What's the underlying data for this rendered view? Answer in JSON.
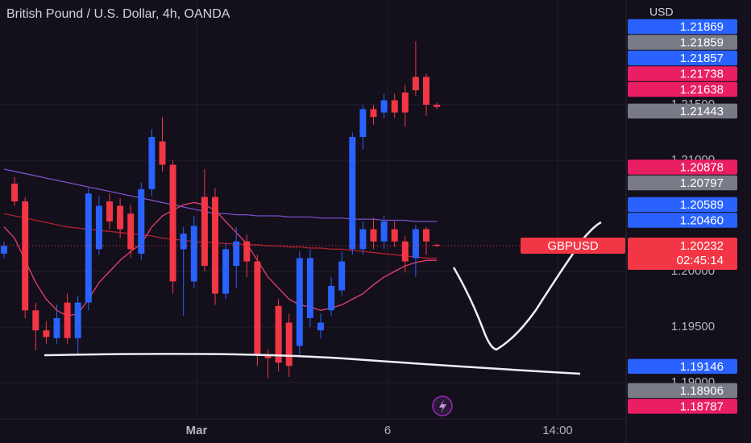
{
  "chart_data": {
    "type": "candlestick",
    "title": "British Pound / U.S. Dollar, 4h, OANDA",
    "currency": "USD",
    "symbol": "GBPUSD",
    "countdown": "02:45:14",
    "up_color": "#2962ff",
    "down_color": "#f23645",
    "ylim": [
      1.18674,
      1.22442
    ],
    "yticks": [
      {
        "value": 1.19,
        "label": "1.19000"
      },
      {
        "value": 1.195,
        "label": "1.19500"
      },
      {
        "value": 1.2,
        "label": "1.20000"
      },
      {
        "value": 1.21,
        "label": "1.21000"
      },
      {
        "value": 1.215,
        "label": "1.21500"
      }
    ],
    "x_labels": [
      "Mar",
      "6",
      "14:00"
    ],
    "current_price": {
      "value": 1.20232,
      "label": "1.20232",
      "color": "#f23645"
    },
    "price_badges": [
      {
        "value": 1.21869,
        "label": "1.21869",
        "color": "#2962ff"
      },
      {
        "value": 1.21859,
        "label": "1.21859",
        "color": "#787b86"
      },
      {
        "value": 1.21857,
        "label": "1.21857",
        "color": "#2962ff"
      },
      {
        "value": 1.21738,
        "label": "1.21738",
        "color": "#e91e63"
      },
      {
        "value": 1.21638,
        "label": "1.21638",
        "color": "#e91e63"
      },
      {
        "value": 1.21443,
        "label": "1.21443",
        "color": "#787b86"
      },
      {
        "value": 1.20878,
        "label": "1.20878",
        "color": "#e91e63"
      },
      {
        "value": 1.20797,
        "label": "1.20797",
        "color": "#787b86"
      },
      {
        "value": 1.20589,
        "label": "1.20589",
        "color": "#2962ff"
      },
      {
        "value": 1.2046,
        "label": "1.20460",
        "color": "#2962ff"
      },
      {
        "value": 1.19146,
        "label": "1.19146",
        "color": "#2962ff"
      },
      {
        "value": 1.18906,
        "label": "1.18906",
        "color": "#787b86"
      },
      {
        "value": 1.18787,
        "label": "1.18787",
        "color": "#e91e63"
      }
    ],
    "candles": [
      {
        "o": 1.2016,
        "h": 1.2027,
        "l": 1.2012,
        "c": 1.2023
      },
      {
        "o": 1.2079,
        "h": 1.2085,
        "l": 1.2059,
        "c": 1.2063
      },
      {
        "o": 1.2063,
        "h": 1.2067,
        "l": 1.1958,
        "c": 1.1965
      },
      {
        "o": 1.1965,
        "h": 1.1972,
        "l": 1.1929,
        "c": 1.1947
      },
      {
        "o": 1.1947,
        "h": 1.1955,
        "l": 1.1935,
        "c": 1.1941
      },
      {
        "o": 1.194,
        "h": 1.197,
        "l": 1.1935,
        "c": 1.1958
      },
      {
        "o": 1.1972,
        "h": 1.198,
        "l": 1.1935,
        "c": 1.194
      },
      {
        "o": 1.194,
        "h": 1.1978,
        "l": 1.1925,
        "c": 1.1972
      },
      {
        "o": 1.1972,
        "h": 1.2075,
        "l": 1.1965,
        "c": 1.207
      },
      {
        "o": 1.202,
        "h": 1.2068,
        "l": 1.2015,
        "c": 1.2059
      },
      {
        "o": 1.2063,
        "h": 1.207,
        "l": 1.2038,
        "c": 1.2045
      },
      {
        "o": 1.2059,
        "h": 1.2066,
        "l": 1.203,
        "c": 1.2038
      },
      {
        "o": 1.2052,
        "h": 1.206,
        "l": 1.2012,
        "c": 1.202
      },
      {
        "o": 1.2016,
        "h": 1.208,
        "l": 1.201,
        "c": 1.2074
      },
      {
        "o": 1.2074,
        "h": 1.2128,
        "l": 1.2068,
        "c": 1.2121
      },
      {
        "o": 1.2117,
        "h": 1.2139,
        "l": 1.209,
        "c": 1.2096
      },
      {
        "o": 1.2096,
        "h": 1.21,
        "l": 1.198,
        "c": 1.1991
      },
      {
        "o": 1.202,
        "h": 1.204,
        "l": 1.196,
        "c": 1.2034
      },
      {
        "o": 1.1991,
        "h": 1.205,
        "l": 1.1985,
        "c": 1.2041
      },
      {
        "o": 1.2067,
        "h": 1.2092,
        "l": 1.2,
        "c": 1.2005
      },
      {
        "o": 1.2067,
        "h": 1.2075,
        "l": 1.197,
        "c": 1.198
      },
      {
        "o": 1.198,
        "h": 1.2026,
        "l": 1.1975,
        "c": 1.202
      },
      {
        "o": 1.2005,
        "h": 1.204,
        "l": 1.1985,
        "c": 1.2027
      },
      {
        "o": 1.2027,
        "h": 1.2033,
        "l": 1.1995,
        "c": 1.2009
      },
      {
        "o": 1.2009,
        "h": 1.2015,
        "l": 1.1915,
        "c": 1.1925
      },
      {
        "o": 1.1925,
        "h": 1.193,
        "l": 1.1904,
        "c": 1.1922
      },
      {
        "o": 1.1969,
        "h": 1.1975,
        "l": 1.191,
        "c": 1.1918
      },
      {
        "o": 1.1954,
        "h": 1.1962,
        "l": 1.1905,
        "c": 1.1915
      },
      {
        "o": 1.1933,
        "h": 1.2018,
        "l": 1.1925,
        "c": 1.2012
      },
      {
        "o": 1.1958,
        "h": 1.202,
        "l": 1.195,
        "c": 1.2012
      },
      {
        "o": 1.1947,
        "h": 1.1962,
        "l": 1.194,
        "c": 1.1954
      },
      {
        "o": 1.1965,
        "h": 1.1995,
        "l": 1.196,
        "c": 1.1987
      },
      {
        "o": 1.1983,
        "h": 1.2018,
        "l": 1.1978,
        "c": 1.2009
      },
      {
        "o": 1.202,
        "h": 1.2125,
        "l": 1.2015,
        "c": 1.2121
      },
      {
        "o": 1.2121,
        "h": 1.215,
        "l": 1.211,
        "c": 1.2146
      },
      {
        "o": 1.2146,
        "h": 1.215,
        "l": 1.2132,
        "c": 1.2139
      },
      {
        "o": 1.2143,
        "h": 1.216,
        "l": 1.2138,
        "c": 1.2154
      },
      {
        "o": 1.2154,
        "h": 1.216,
        "l": 1.2138,
        "c": 1.2143
      },
      {
        "o": 1.2161,
        "h": 1.2168,
        "l": 1.213,
        "c": 1.2143
      },
      {
        "o": 1.2175,
        "h": 1.2207,
        "l": 1.2158,
        "c": 1.2163
      },
      {
        "o": 1.2175,
        "h": 1.2178,
        "l": 1.214,
        "c": 1.215
      },
      {
        "o": 1.215,
        "h": 1.2152,
        "l": 1.2146,
        "c": 1.2148
      }
    ],
    "overlay_candles": [
      {
        "o": 1.202,
        "h": 1.2045,
        "l": 1.2015,
        "c": 1.2038
      },
      {
        "o": 1.2038,
        "h": 1.2048,
        "l": 1.202,
        "c": 1.2027
      },
      {
        "o": 1.2027,
        "h": 1.205,
        "l": 1.202,
        "c": 1.2045
      },
      {
        "o": 1.2038,
        "h": 1.2045,
        "l": 1.2022,
        "c": 1.2027
      },
      {
        "o": 1.2027,
        "h": 1.2032,
        "l": 1.1999,
        "c": 1.2009
      },
      {
        "o": 1.2012,
        "h": 1.2042,
        "l": 1.1995,
        "c": 1.2038
      },
      {
        "o": 1.2038,
        "h": 1.204,
        "l": 1.2015,
        "c": 1.2027
      },
      {
        "o": 1.2024,
        "h": 1.2025,
        "l": 1.2022,
        "c": 1.2023
      }
    ],
    "lines": [
      {
        "color": "#7b4fc9",
        "values": [
          1.2092,
          1.209,
          1.2088,
          1.2086,
          1.2084,
          1.2082,
          1.208,
          1.2078,
          1.2076,
          1.2074,
          1.2072,
          1.207,
          1.2068,
          1.2066,
          1.2064,
          1.2062,
          1.206,
          1.2058,
          1.2056,
          1.2054,
          1.2052,
          1.2052,
          1.2051,
          1.2051,
          1.205,
          1.205,
          1.205,
          1.2049,
          1.2049,
          1.2049,
          1.2048,
          1.2048,
          1.2048,
          1.2047,
          1.2047,
          1.2047,
          1.2046,
          1.2046,
          1.2046,
          1.2045,
          1.2045,
          1.2045
        ]
      },
      {
        "color": "#b3202e",
        "values": [
          1.2052,
          1.205,
          1.2048,
          1.2046,
          1.2044,
          1.2042,
          1.204,
          1.2039,
          1.2038,
          1.2037,
          1.2036,
          1.2035,
          1.2034,
          1.2033,
          1.2032,
          1.203,
          1.2029,
          1.2028,
          1.2027,
          1.2026,
          1.2026,
          1.2025,
          1.2025,
          1.2024,
          1.2024,
          1.2023,
          1.2023,
          1.2022,
          1.2022,
          1.2021,
          1.2021,
          1.202,
          1.202,
          1.2019,
          1.2018,
          1.2017,
          1.2016,
          1.2015,
          1.2014,
          1.2013,
          1.2012,
          1.2012
        ]
      },
      {
        "color": "#e8416b",
        "values": [
          1.204,
          1.203,
          1.201,
          1.199,
          1.1975,
          1.1965,
          1.196,
          1.1962,
          1.1975,
          1.199,
          1.2,
          1.201,
          1.2018,
          1.2025,
          1.204,
          1.205,
          1.2055,
          1.206,
          1.2062,
          1.206,
          1.2055,
          1.2045,
          1.2035,
          1.2025,
          1.201,
          1.1995,
          1.1985,
          1.1975,
          1.197,
          1.1968,
          1.1965,
          1.1967,
          1.197,
          1.1975,
          1.198,
          1.1988,
          1.1995,
          1.2,
          1.2005,
          1.2008,
          1.201,
          1.201
        ]
      }
    ]
  }
}
